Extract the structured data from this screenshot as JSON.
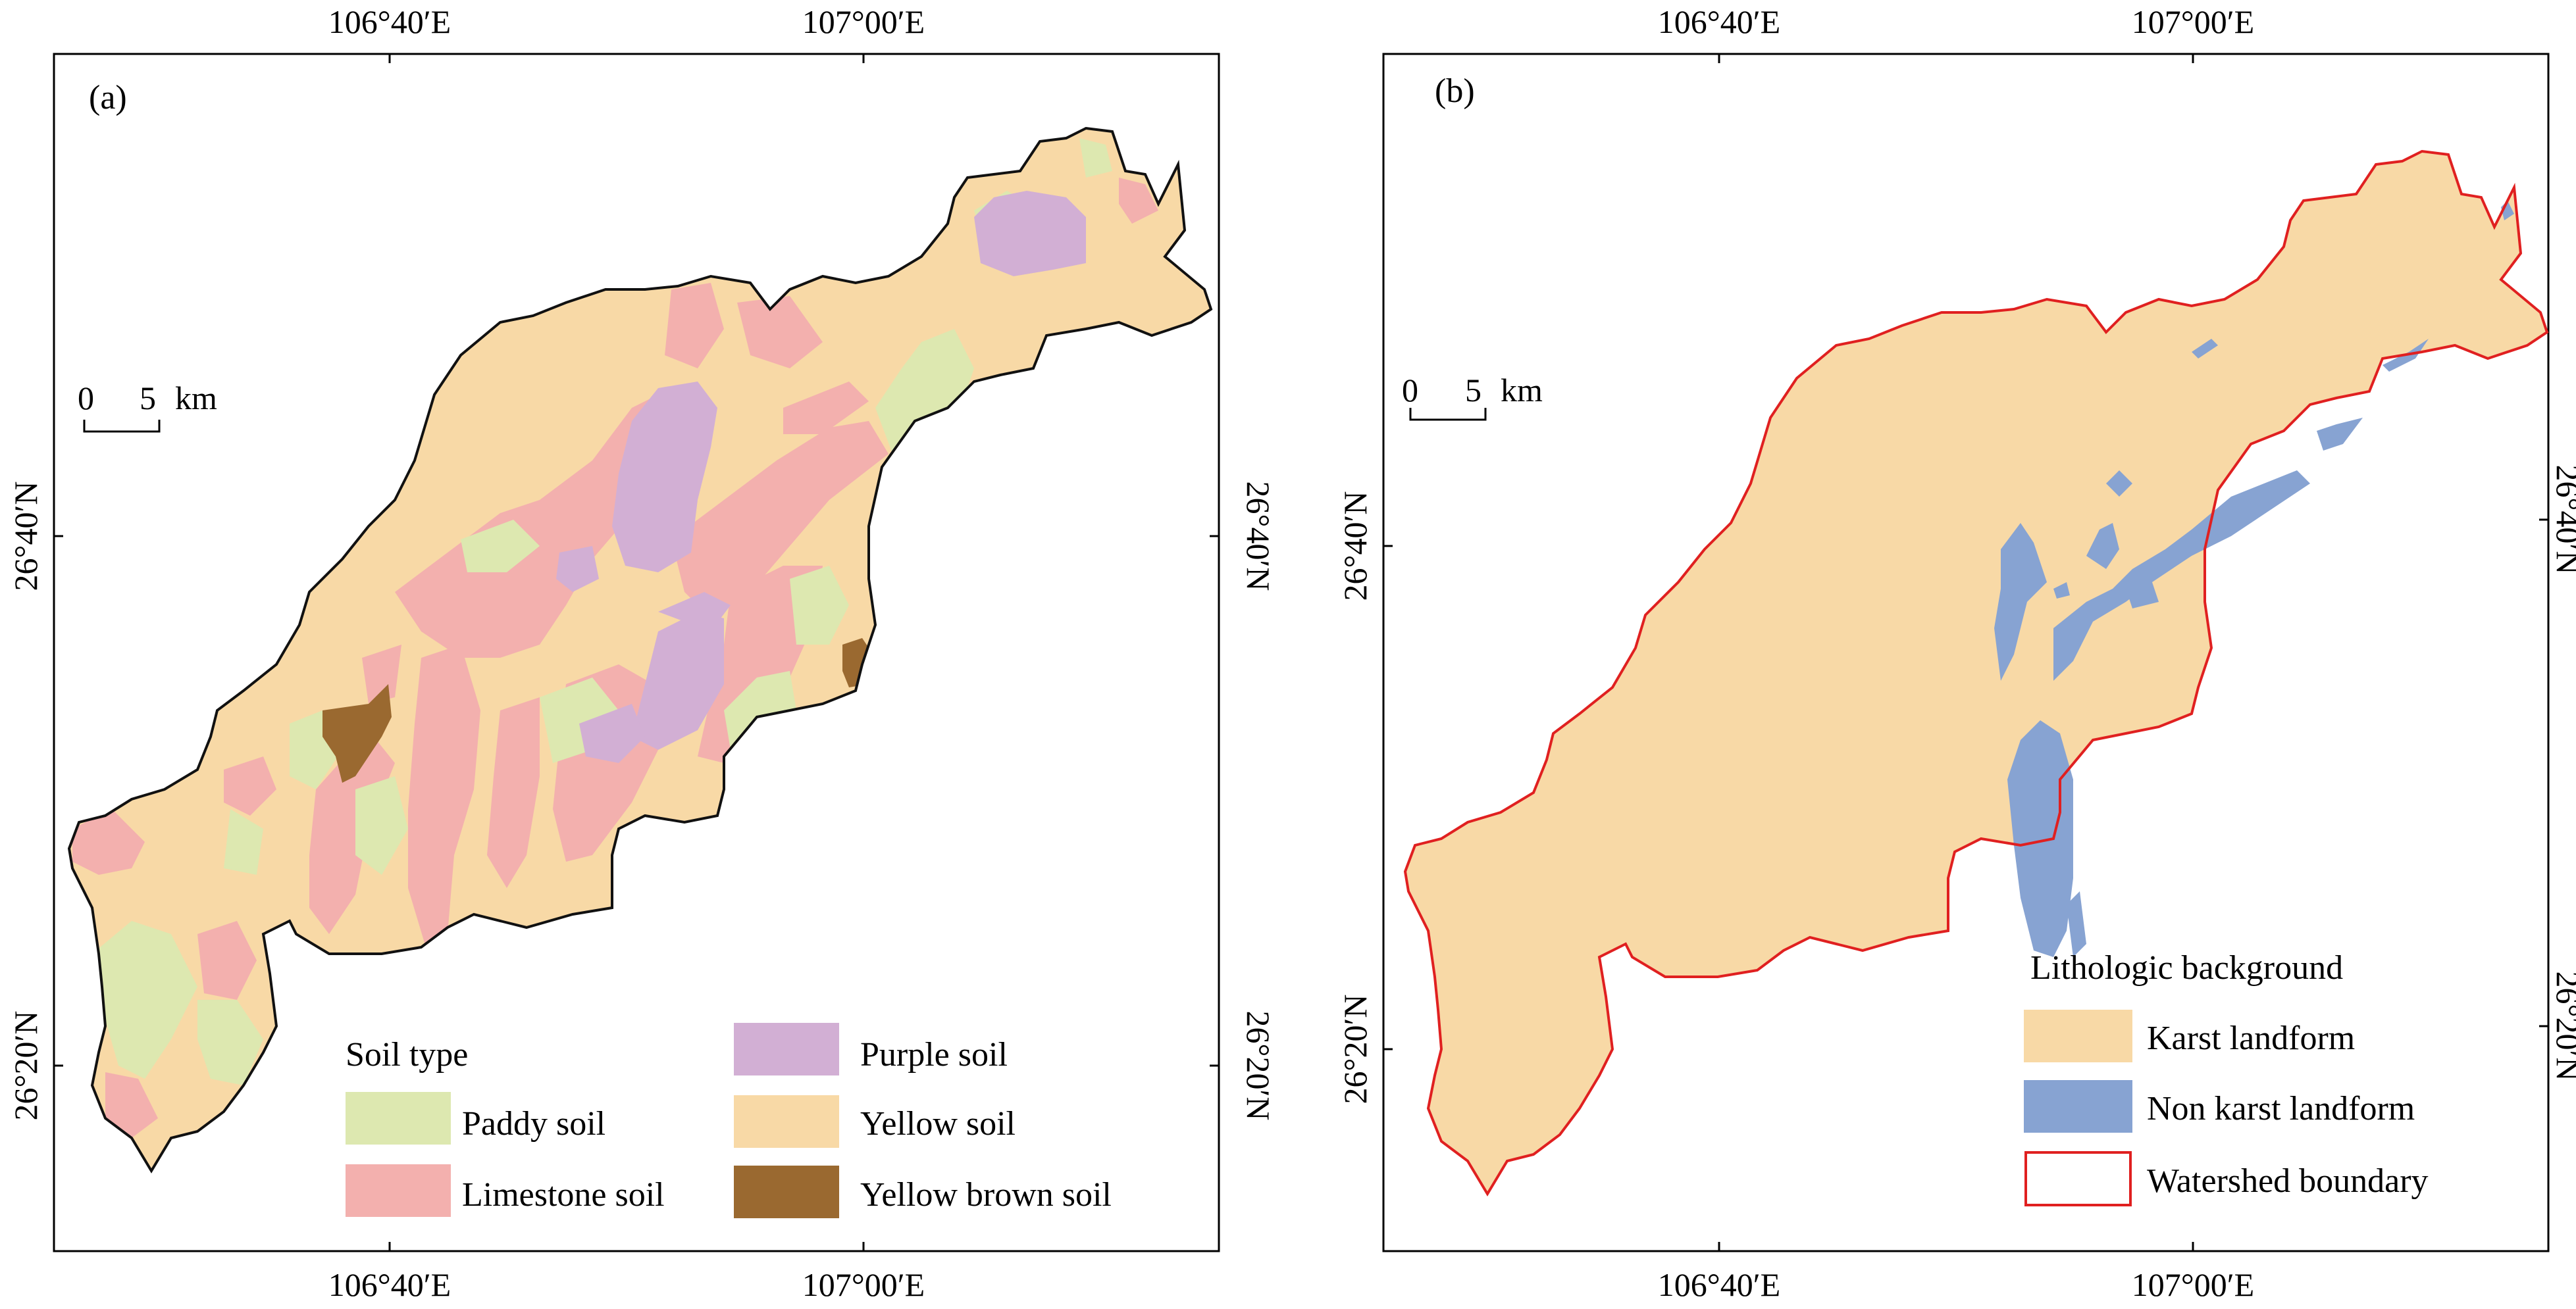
{
  "panel_a": {
    "label": "(a)",
    "top_ticks": [
      "106°40′E",
      "107°00′E"
    ],
    "bottom_ticks": [
      "106°40′E",
      "107°00′E"
    ],
    "left_ticks": [
      "26°40′N",
      "26°20′N"
    ],
    "right_ticks": [
      "26°40′N",
      "26°20′N"
    ],
    "scale_bar": {
      "zero": "0",
      "five": "5",
      "unit": "km"
    },
    "legend": {
      "title": "Soil type",
      "items": [
        {
          "label": "Paddy soil",
          "color": "#dde8b0"
        },
        {
          "label": "Limestone soil",
          "color": "#f3b0ae"
        },
        {
          "label": "Purple soil",
          "color": "#d2afd4"
        },
        {
          "label": "Yellow soil",
          "color": "#f8d9a6"
        },
        {
          "label": "Yellow brown soil",
          "color": "#9a6930"
        }
      ]
    }
  },
  "panel_b": {
    "label": "(b)",
    "top_ticks": [
      "106°40′E",
      "107°00′E"
    ],
    "bottom_ticks": [
      "106°40′E",
      "107°00′E"
    ],
    "left_ticks": [
      "26°40′N",
      "26°20′N"
    ],
    "right_ticks": [
      "26°40′N",
      "26°20′N"
    ],
    "scale_bar": {
      "zero": "0",
      "five": "5",
      "unit": "km"
    },
    "legend": {
      "title": "Lithologic background",
      "items": [
        {
          "label": "Karst landform",
          "color": "#f8d9a6"
        },
        {
          "label": "Non karst landform",
          "color": "#87a3d2"
        },
        {
          "label": "Watershed boundary",
          "color": "#e02020"
        }
      ]
    }
  }
}
